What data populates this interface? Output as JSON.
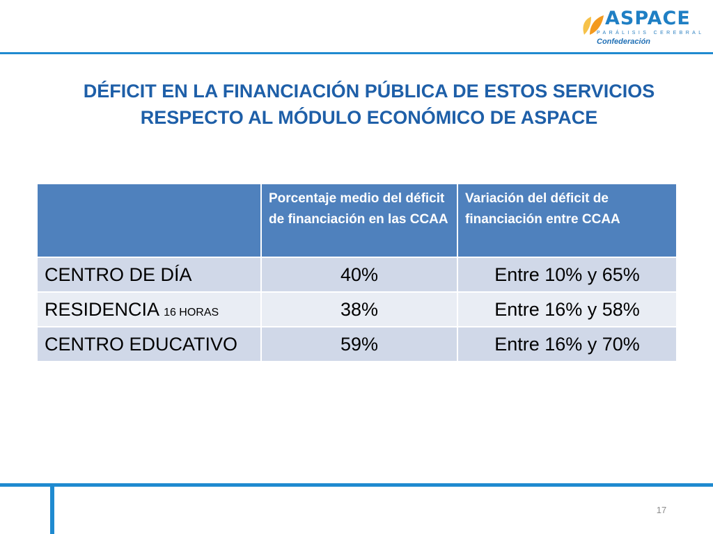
{
  "logo": {
    "wordmark": "ASPACE",
    "subtitle": "PARÁLISIS CEREBRAL",
    "tagline": "Confederación",
    "colors": {
      "leaf_orange": "#f39a1f",
      "leaf_light": "#f6c24a",
      "brand_blue": "#1f7fc4"
    }
  },
  "title": {
    "line1": "DÉFICIT EN LA FINANCIACIÓN PÚBLICA DE ESTOS SERVICIOS",
    "line2": "RESPECTO AL MÓDULO ECONÓMICO DE ASPACE"
  },
  "table": {
    "headers": [
      "",
      "Porcentaje  medio del déficit de financiación en las CCAA",
      "Variación del déficit de financiación entre CCAA"
    ],
    "rows": [
      {
        "label": "CENTRO DE DÍA",
        "label_suffix": "",
        "average": "40%",
        "range": "Entre 10% y 65%"
      },
      {
        "label": "RESIDENCIA",
        "label_suffix": "16 HORAS",
        "average": "38%",
        "range": "Entre 16% y 58%"
      },
      {
        "label": "CENTRO EDUCATIVO",
        "label_suffix": "",
        "average": "59%",
        "range": "Entre 16% y 70%"
      }
    ],
    "colors": {
      "header": "#4f81bd",
      "row_dark": "#d0d8e8",
      "row_light": "#e9edf4"
    }
  },
  "page": {
    "number": "17"
  }
}
